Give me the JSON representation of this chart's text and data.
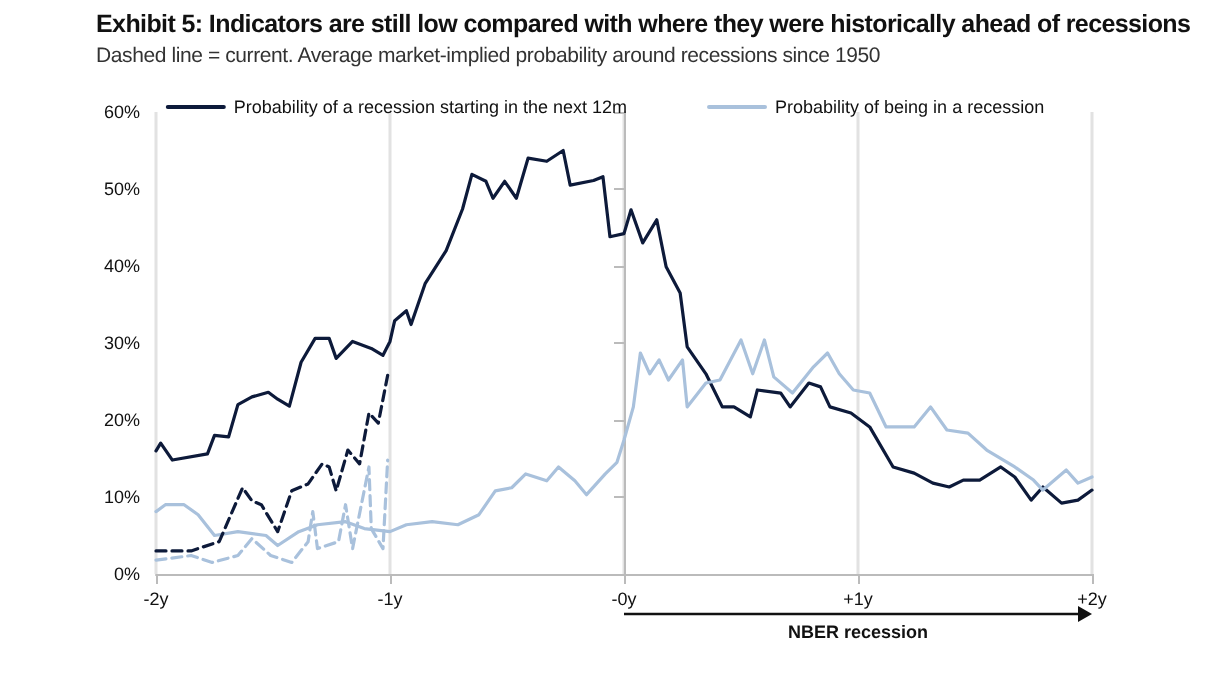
{
  "chart_data": {
    "type": "line",
    "title": "Exhibit 5: Indicators are still low compared with where they were historically ahead of recessions",
    "subtitle": "Dashed line = current. Average market-implied probability around recessions since 1950",
    "xlim": [
      -2,
      2
    ],
    "xticks": [
      {
        "value": -2,
        "label": "-2y"
      },
      {
        "value": -1,
        "label": "-1y"
      },
      {
        "value": 0,
        "label": "-0y"
      },
      {
        "value": 1,
        "label": "+1y"
      },
      {
        "value": 2,
        "label": "+2y"
      }
    ],
    "ylim": [
      0,
      60
    ],
    "yticks": [
      {
        "value": 0,
        "label": "0%"
      },
      {
        "value": 10,
        "label": "10%"
      },
      {
        "value": 20,
        "label": "20%"
      },
      {
        "value": 30,
        "label": "30%"
      },
      {
        "value": 40,
        "label": "40%"
      },
      {
        "value": 50,
        "label": "50%"
      },
      {
        "value": 60,
        "label": "60%"
      }
    ],
    "grid": "x",
    "legend": "top",
    "marker": "none",
    "annotations": [
      "NBER recession"
    ],
    "series": [
      {
        "name": "Probability of a recession starting in the next 12m",
        "color": "#0d1a3a",
        "line_style": "solid",
        "x": [
          -2,
          -1.98,
          -1.93,
          -1.78,
          -1.75,
          -1.69,
          -1.65,
          -1.59,
          -1.52,
          -1.48,
          -1.43,
          -1.38,
          -1.32,
          -1.26,
          -1.23,
          -1.16,
          -1.08,
          -1.03,
          -1.0,
          -0.98,
          -0.93,
          -0.91,
          -0.85,
          -0.76,
          -0.69,
          -0.65,
          -0.59,
          -0.56,
          -0.51,
          -0.46,
          -0.41,
          -0.33,
          -0.26,
          -0.23,
          -0.13,
          -0.09,
          -0.06,
          0,
          0.03,
          0.08,
          0.14,
          0.18,
          0.24,
          0.27,
          0.35,
          0.42,
          0.47,
          0.54,
          0.57,
          0.67,
          0.71,
          0.79,
          0.84,
          0.88,
          0.97,
          1.05,
          1.15,
          1.24,
          1.32,
          1.39,
          1.45,
          1.52,
          1.61,
          1.67,
          1.74,
          1.79,
          1.87,
          1.94,
          2.0
        ],
        "values": [
          16,
          17,
          14.8,
          15.6,
          18,
          17.8,
          22,
          23,
          23.6,
          22.7,
          21.8,
          27.5,
          30.6,
          30.6,
          28,
          30.2,
          29.3,
          28.4,
          30.2,
          32.9,
          34.2,
          32.4,
          37.7,
          42,
          47.4,
          51.9,
          51,
          48.8,
          51,
          48.8,
          54,
          53.6,
          55,
          50.5,
          51.1,
          51.6,
          43.8,
          44.2,
          47.3,
          43,
          46,
          39.9,
          36.5,
          29.5,
          26,
          21.7,
          21.7,
          20.4,
          23.9,
          23.5,
          21.7,
          24.8,
          24.3,
          21.7,
          20.9,
          19.1,
          13.9,
          13.1,
          11.8,
          11.3,
          12.2,
          12.2,
          13.9,
          12.6,
          9.6,
          11.3,
          9.2,
          9.6,
          10.9
        ]
      },
      {
        "name": "Probability of being in a recession",
        "color": "#a9c1dc",
        "line_style": "solid",
        "x": [
          -2,
          -1.96,
          -1.88,
          -1.82,
          -1.75,
          -1.65,
          -1.53,
          -1.48,
          -1.39,
          -1.31,
          -1.19,
          -1.11,
          -1.0,
          -0.93,
          -0.82,
          -0.71,
          -0.62,
          -0.55,
          -0.48,
          -0.42,
          -0.33,
          -0.28,
          -0.21,
          -0.16,
          -0.08,
          -0.03,
          0,
          0.04,
          0.07,
          0.11,
          0.15,
          0.19,
          0.25,
          0.27,
          0.35,
          0.41,
          0.5,
          0.55,
          0.6,
          0.64,
          0.72,
          0.81,
          0.87,
          0.92,
          0.98,
          1.05,
          1.12,
          1.24,
          1.31,
          1.38,
          1.47,
          1.55,
          1.67,
          1.75,
          1.79,
          1.89,
          1.94,
          2.0
        ],
        "values": [
          8.1,
          9,
          9,
          7.7,
          5,
          5.5,
          5,
          3.7,
          5.5,
          6.4,
          6.8,
          5.9,
          5.5,
          6.4,
          6.8,
          6.4,
          7.7,
          10.8,
          11.2,
          13,
          12.1,
          13.9,
          12.1,
          10.3,
          13,
          14.5,
          17.4,
          21.7,
          28.7,
          26,
          27.8,
          25.2,
          27.8,
          21.7,
          24.8,
          25.2,
          30.4,
          26,
          30.4,
          25.6,
          23.5,
          26.9,
          28.7,
          26,
          23.9,
          23.5,
          19.1,
          19.1,
          21.7,
          18.7,
          18.3,
          16.1,
          13.9,
          12.2,
          10.9,
          13.5,
          11.8,
          12.6
        ]
      },
      {
        "color": "#0d1a3a",
        "line_style": "dashed",
        "x": [
          -2,
          -1.85,
          -1.73,
          -1.63,
          -1.59,
          -1.55,
          -1.48,
          -1.42,
          -1.35,
          -1.29,
          -1.26,
          -1.23,
          -1.18,
          -1.13,
          -1.09,
          -1.05,
          -1.01
        ],
        "values": [
          3,
          3,
          4.2,
          11.2,
          9.5,
          9,
          5.5,
          10.8,
          11.7,
          14.3,
          13.9,
          10.8,
          16.1,
          14.3,
          20.9,
          19.6,
          25.8
        ]
      },
      {
        "color": "#a9c1dc",
        "line_style": "dashed",
        "x": [
          -2,
          -1.85,
          -1.76,
          -1.65,
          -1.59,
          -1.51,
          -1.42,
          -1.35,
          -1.33,
          -1.31,
          -1.22,
          -1.19,
          -1.16,
          -1.09,
          -1.08,
          -1.03,
          -1.01
        ],
        "values": [
          1.8,
          2.4,
          1.5,
          2.4,
          4.6,
          2.4,
          1.5,
          4.2,
          8.1,
          3.3,
          4.2,
          9,
          3.3,
          13.9,
          5.9,
          3.3,
          14.8
        ]
      }
    ]
  }
}
